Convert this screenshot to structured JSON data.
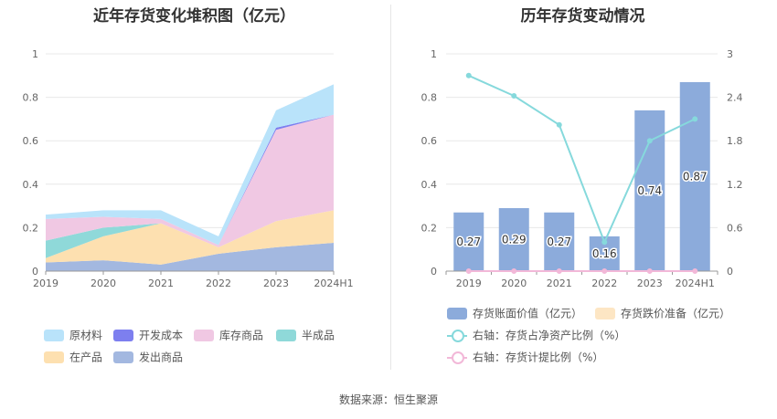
{
  "footer": "数据来源：恒生聚源",
  "chart_data": [
    {
      "type": "area",
      "title": "近年存货变化堆积图（亿元）",
      "categories": [
        "2019",
        "2020",
        "2021",
        "2022",
        "2023",
        "2024H1"
      ],
      "ylim": [
        0,
        1
      ],
      "yticks": [
        "0",
        "0.2",
        "0.4",
        "0.6",
        "0.8",
        "1"
      ],
      "grid": true,
      "legend_position": "bottom",
      "series": [
        {
          "name": "发出商品",
          "color": "#a3b8e0",
          "values": [
            0.04,
            0.05,
            0.03,
            0.08,
            0.11,
            0.13
          ]
        },
        {
          "name": "在产品",
          "color": "#fde0b0",
          "values": [
            0.02,
            0.11,
            0.19,
            0.03,
            0.12,
            0.15
          ]
        },
        {
          "name": "半成品",
          "color": "#8fd9d9",
          "values": [
            0.08,
            0.04,
            0.0,
            0.0,
            0.0,
            0.0
          ]
        },
        {
          "name": "库存商品",
          "color": "#f0c8e3",
          "values": [
            0.1,
            0.05,
            0.02,
            0.01,
            0.42,
            0.44
          ]
        },
        {
          "name": "开发成本",
          "color": "#7d7fef",
          "values": [
            0.0,
            0.0,
            0.0,
            0.0,
            0.01,
            0.0
          ]
        },
        {
          "name": "原材料",
          "color": "#b9e3fa",
          "values": [
            0.02,
            0.03,
            0.04,
            0.04,
            0.08,
            0.14
          ]
        }
      ],
      "legend_order": [
        "原材料",
        "开发成本",
        "库存商品",
        "半成品",
        "在产品",
        "发出商品"
      ]
    },
    {
      "type": "bar",
      "title": "历年存货变动情况",
      "categories": [
        "2019",
        "2020",
        "2021",
        "2022",
        "2023",
        "2024H1"
      ],
      "ylim": [
        0,
        1
      ],
      "yticks": [
        "0",
        "0.2",
        "0.4",
        "0.6",
        "0.8",
        "1"
      ],
      "y2lim": [
        0,
        3
      ],
      "y2ticks": [
        "0",
        "0.6",
        "1.2",
        "1.8",
        "2.4",
        "3"
      ],
      "grid": true,
      "legend_position": "bottom",
      "bars": [
        {
          "name": "存货账面价值（亿元）",
          "color": "#8cabdb",
          "values": [
            0.27,
            0.29,
            0.27,
            0.16,
            0.74,
            0.87
          ],
          "labels": [
            "0.27",
            "0.29",
            "0.27",
            "0.16",
            "0.74",
            "0.87"
          ]
        },
        {
          "name": "存货跌价准备（亿元）",
          "color": "#fde6c4",
          "values": [
            0,
            0,
            0,
            0,
            0,
            0
          ]
        }
      ],
      "lines": [
        {
          "name": "右轴：存货占净资产比例（%）",
          "color": "#86d9dc",
          "axis": "right",
          "values": [
            2.7,
            2.42,
            2.02,
            0.4,
            1.8,
            2.1
          ]
        },
        {
          "name": "右轴：存货计提比例（%）",
          "color": "#f2b8d8",
          "axis": "right",
          "values": [
            0,
            0,
            0,
            0,
            0,
            0
          ]
        }
      ]
    }
  ]
}
